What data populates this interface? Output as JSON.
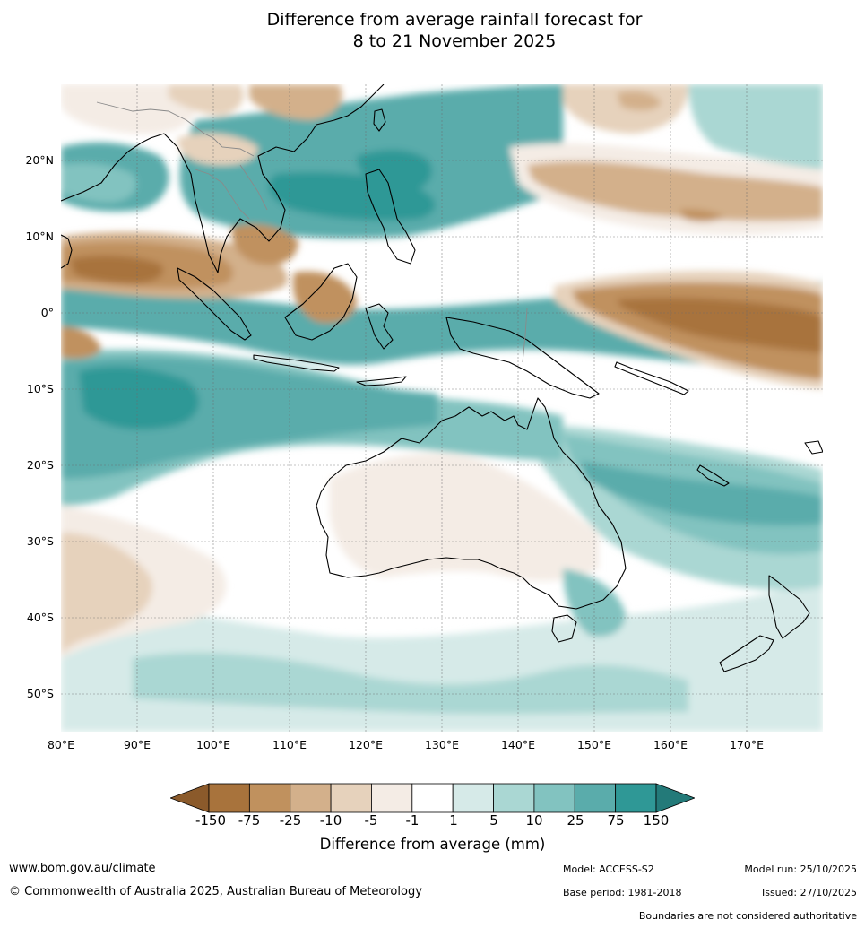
{
  "title": {
    "line1": "Difference from average rainfall forecast for",
    "line2": "8 to 21 November 2025"
  },
  "map": {
    "lat_labels": [
      "20°N",
      "10°N",
      "0°",
      "10°S",
      "20°S",
      "30°S",
      "40°S",
      "50°S"
    ],
    "lon_labels": [
      "80°E",
      "90°E",
      "100°E",
      "110°E",
      "120°E",
      "130°E",
      "140°E",
      "150°E",
      "160°E",
      "170°E"
    ],
    "extent": {
      "lon_min": 80,
      "lon_max": 180,
      "lat_min": -55,
      "lat_max": 30
    },
    "regions": [
      {
        "name": "Maritime continent / equatorial Pacific",
        "class": "wetter"
      },
      {
        "name": "Central Indian Ocean near equator",
        "class": "drier"
      },
      {
        "name": "North-west Pacific 10-20N",
        "class": "drier"
      },
      {
        "name": "Equatorial Pacific 150-180E",
        "class": "drier"
      },
      {
        "name": "Western Australia interior",
        "class": "near average"
      },
      {
        "name": "Eastern Australia",
        "class": "wetter"
      }
    ]
  },
  "legend": {
    "ticks": [
      "-150",
      "-75",
      "-25",
      "-10",
      "-5",
      "-1",
      "1",
      "5",
      "10",
      "25",
      "75",
      "150"
    ],
    "colors": [
      "#8b5a2b",
      "#a8733c",
      "#c0915e",
      "#d3b08b",
      "#e6d2bc",
      "#f4ece5",
      "#ffffff",
      "#d6eae8",
      "#aad7d3",
      "#82c3c0",
      "#5aacab",
      "#2f9896",
      "#237a79"
    ],
    "title": "Difference from average (mm)"
  },
  "footer": {
    "website": "www.bom.gov.au/climate",
    "copyright": "© Commonwealth of Australia 2025, Australian Bureau of Meteorology",
    "model": "Model: ACCESS-S2",
    "base_period": "Base period: 1981-2018",
    "model_run": "Model run: 25/10/2025",
    "issued": "Issued: 27/10/2025",
    "boundaries": "Boundaries are not considered authoritative"
  }
}
